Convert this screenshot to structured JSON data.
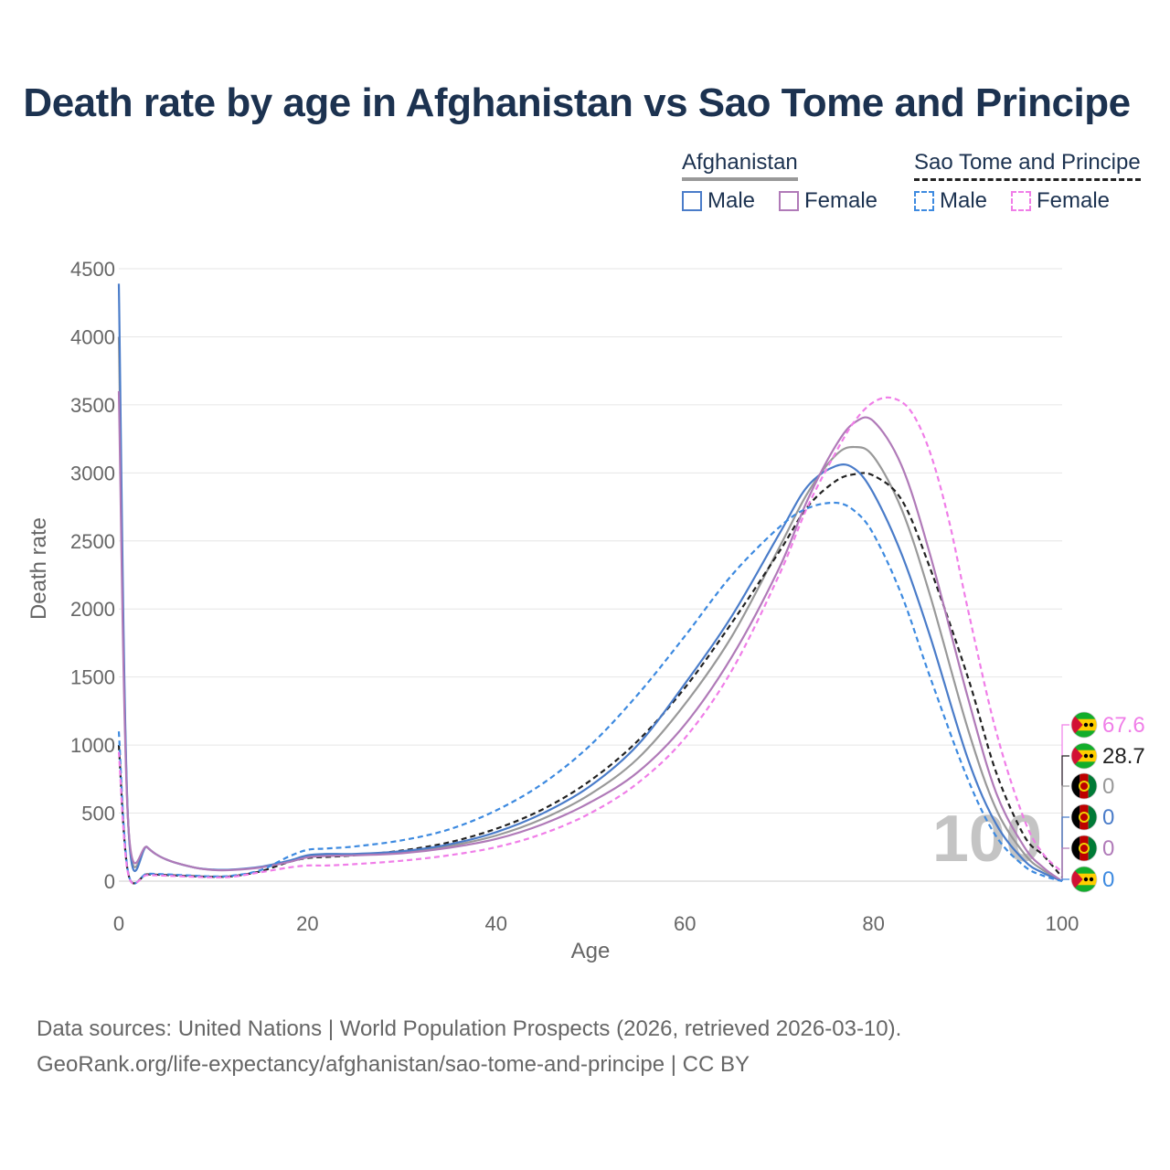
{
  "title": "Death rate by age in Afghanistan vs Sao Tome and Principe",
  "legend": {
    "groups": [
      {
        "label": "Afghanistan",
        "line_color": "#999999",
        "line_style": "solid",
        "items": [
          {
            "label": "Male",
            "color": "#4a7cc9",
            "style": "solid"
          },
          {
            "label": "Female",
            "color": "#b07ab8",
            "style": "solid"
          }
        ]
      },
      {
        "label": "Sao Tome and Principe",
        "line_color": "#222222",
        "line_style": "dashed",
        "items": [
          {
            "label": "Male",
            "color": "#3d8ae0",
            "style": "dashed"
          },
          {
            "label": "Female",
            "color": "#f07ee8",
            "style": "dashed"
          }
        ]
      }
    ]
  },
  "chart_data": {
    "type": "line",
    "title": "Death rate by age in Afghanistan vs Sao Tome and Principe",
    "xlabel": "Age",
    "ylabel": "Death rate",
    "xlim": [
      0,
      100
    ],
    "ylim": [
      0,
      4500
    ],
    "xticks": [
      0,
      20,
      40,
      60,
      80,
      100
    ],
    "yticks": [
      0,
      500,
      1000,
      1500,
      2000,
      2500,
      3000,
      3500,
      4000,
      4500
    ],
    "grid": true,
    "watermark_label": "100",
    "series": [
      {
        "name": "Afghanistan Male",
        "color": "#4a7cc9",
        "dash": "solid",
        "x": [
          0,
          1,
          3,
          5,
          8,
          10,
          12,
          15,
          18,
          20,
          22,
          25,
          30,
          35,
          40,
          45,
          50,
          55,
          60,
          65,
          70,
          73,
          76,
          78,
          80,
          83,
          86,
          90,
          93,
          96,
          98,
          100
        ],
        "y": [
          4390,
          420,
          250,
          160,
          100,
          85,
          85,
          105,
          150,
          190,
          200,
          200,
          220,
          270,
          360,
          500,
          700,
          1000,
          1450,
          1950,
          2550,
          2900,
          3050,
          3030,
          2850,
          2400,
          1800,
          900,
          420,
          150,
          60,
          0
        ]
      },
      {
        "name": "Afghanistan Female",
        "color": "#b07ab8",
        "dash": "solid",
        "x": [
          0,
          1,
          3,
          5,
          8,
          10,
          12,
          15,
          18,
          20,
          22,
          25,
          30,
          35,
          40,
          45,
          50,
          55,
          60,
          65,
          70,
          73,
          76,
          78,
          80,
          83,
          86,
          90,
          93,
          96,
          98,
          100
        ],
        "y": [
          3600,
          420,
          250,
          160,
          100,
          82,
          82,
          100,
          140,
          175,
          185,
          190,
          205,
          245,
          310,
          420,
          580,
          800,
          1150,
          1650,
          2300,
          2800,
          3200,
          3370,
          3380,
          3050,
          2400,
          1350,
          650,
          250,
          100,
          0
        ]
      },
      {
        "name": "Afghanistan (both sexes)",
        "color": "#999999",
        "dash": "solid",
        "x": [
          0,
          1,
          3,
          5,
          8,
          10,
          12,
          15,
          18,
          20,
          22,
          25,
          30,
          35,
          40,
          45,
          50,
          55,
          60,
          65,
          70,
          73,
          76,
          78,
          80,
          83,
          86,
          90,
          93,
          96,
          98,
          100
        ],
        "y": [
          4000,
          420,
          250,
          160,
          100,
          84,
          84,
          102,
          145,
          182,
          192,
          195,
          212,
          258,
          335,
          460,
          640,
          900,
          1300,
          1800,
          2450,
          2850,
          3130,
          3190,
          3120,
          2730,
          2100,
          1120,
          530,
          200,
          80,
          0
        ]
      },
      {
        "name": "Sao Tome and Principe Male",
        "color": "#3d8ae0",
        "dash": "dashed",
        "x": [
          0,
          1,
          3,
          5,
          8,
          10,
          12,
          15,
          18,
          20,
          22,
          25,
          30,
          35,
          40,
          45,
          50,
          55,
          60,
          65,
          70,
          73,
          76,
          78,
          80,
          83,
          86,
          90,
          93,
          96,
          98,
          100
        ],
        "y": [
          1100,
          60,
          55,
          50,
          40,
          35,
          40,
          80,
          180,
          230,
          240,
          255,
          300,
          380,
          520,
          720,
          1000,
          1370,
          1800,
          2250,
          2600,
          2740,
          2780,
          2720,
          2550,
          2100,
          1500,
          750,
          330,
          110,
          40,
          0
        ]
      },
      {
        "name": "Sao Tome and Principe Female",
        "color": "#f07ee8",
        "dash": "dashed",
        "x": [
          0,
          1,
          3,
          5,
          8,
          10,
          12,
          15,
          18,
          20,
          22,
          25,
          30,
          35,
          40,
          45,
          50,
          55,
          60,
          65,
          70,
          73,
          76,
          78,
          80,
          82,
          84,
          86,
          88,
          90,
          93,
          96,
          98,
          100
        ],
        "y": [
          950,
          50,
          45,
          40,
          32,
          28,
          32,
          65,
          100,
          115,
          115,
          125,
          150,
          190,
          250,
          350,
          500,
          720,
          1050,
          1550,
          2250,
          2750,
          3150,
          3380,
          3520,
          3550,
          3450,
          3150,
          2650,
          2000,
          1100,
          450,
          200,
          68
        ]
      },
      {
        "name": "Sao Tome and Principe (both sexes)",
        "color": "#222222",
        "dash": "dashed",
        "x": [
          0,
          1,
          3,
          5,
          8,
          10,
          12,
          15,
          18,
          20,
          22,
          25,
          30,
          35,
          40,
          45,
          50,
          55,
          60,
          65,
          70,
          73,
          76,
          78,
          80,
          83,
          86,
          90,
          93,
          96,
          98,
          100
        ],
        "y": [
          1000,
          55,
          50,
          45,
          36,
          32,
          36,
          72,
          140,
          170,
          178,
          190,
          225,
          285,
          385,
          530,
          740,
          1030,
          1420,
          1900,
          2420,
          2750,
          2940,
          2990,
          2980,
          2800,
          2300,
          1500,
          800,
          330,
          190,
          29
        ]
      }
    ],
    "end_labels": [
      {
        "value": "67.6",
        "color": "#f07ee8",
        "country": "Sao Tome and Principe"
      },
      {
        "value": "28.7",
        "color": "#222222",
        "country": "Sao Tome and Principe"
      },
      {
        "value": "0",
        "color": "#999999",
        "country": "Afghanistan"
      },
      {
        "value": "0",
        "color": "#4a7cc9",
        "country": "Afghanistan"
      },
      {
        "value": "0",
        "color": "#b07ab8",
        "country": "Afghanistan"
      },
      {
        "value": "0",
        "color": "#3d8ae0",
        "country": "Sao Tome and Principe"
      }
    ]
  },
  "source": {
    "line1": "Data sources: United Nations | World Population Prospects (2026, retrieved 2026-03-10).",
    "line2": "GeoRank.org/life-expectancy/afghanistan/sao-tome-and-principe | CC BY"
  }
}
